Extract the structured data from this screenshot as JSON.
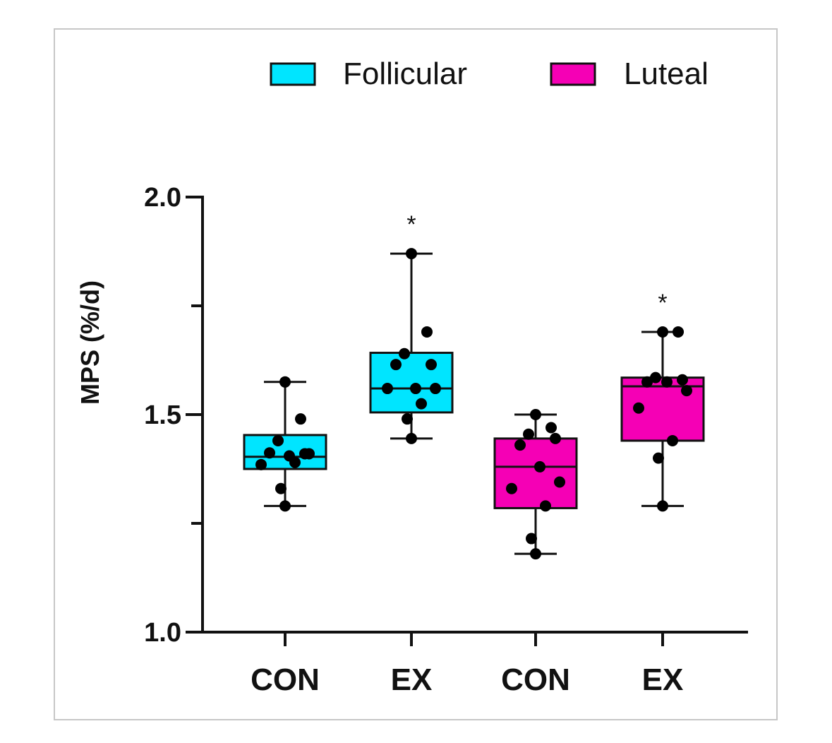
{
  "chart_data": {
    "type": "box",
    "title": "",
    "xlabel": "",
    "ylabel": "MPS (%/d)",
    "ylim": [
      1.0,
      2.0
    ],
    "yticks": [
      1.0,
      1.25,
      1.5,
      1.75,
      2.0
    ],
    "ytick_labels": [
      "1.0",
      "",
      "1.5",
      "",
      "2.0"
    ],
    "legend": [
      {
        "name": "Follicular",
        "color": "#00E5FF"
      },
      {
        "name": "Luteal",
        "color": "#F500B5"
      }
    ],
    "groups": [
      {
        "label": "CON",
        "phase": "Follicular",
        "min": 1.29,
        "q1": 1.375,
        "median": 1.403,
        "q3": 1.453,
        "max": 1.575,
        "points": [
          1.575,
          1.49,
          1.44,
          1.41,
          1.412,
          1.405,
          1.41,
          1.385,
          1.39,
          1.33,
          1.29
        ],
        "significance": ""
      },
      {
        "label": "EX",
        "phase": "Follicular",
        "min": 1.445,
        "q1": 1.505,
        "median": 1.56,
        "q3": 1.642,
        "max": 1.87,
        "points": [
          1.87,
          1.69,
          1.64,
          1.615,
          1.615,
          1.56,
          1.56,
          1.56,
          1.525,
          1.49,
          1.445
        ],
        "significance": "*"
      },
      {
        "label": "CON",
        "phase": "Luteal",
        "min": 1.18,
        "q1": 1.285,
        "median": 1.38,
        "q3": 1.445,
        "max": 1.5,
        "points": [
          1.5,
          1.47,
          1.455,
          1.445,
          1.43,
          1.38,
          1.345,
          1.33,
          1.29,
          1.215,
          1.18
        ],
        "significance": ""
      },
      {
        "label": "EX",
        "phase": "Luteal",
        "min": 1.29,
        "q1": 1.44,
        "median": 1.565,
        "q3": 1.585,
        "max": 1.69,
        "points": [
          1.69,
          1.69,
          1.585,
          1.58,
          1.575,
          1.575,
          1.555,
          1.515,
          1.44,
          1.4,
          1.29
        ],
        "significance": "*"
      }
    ]
  }
}
